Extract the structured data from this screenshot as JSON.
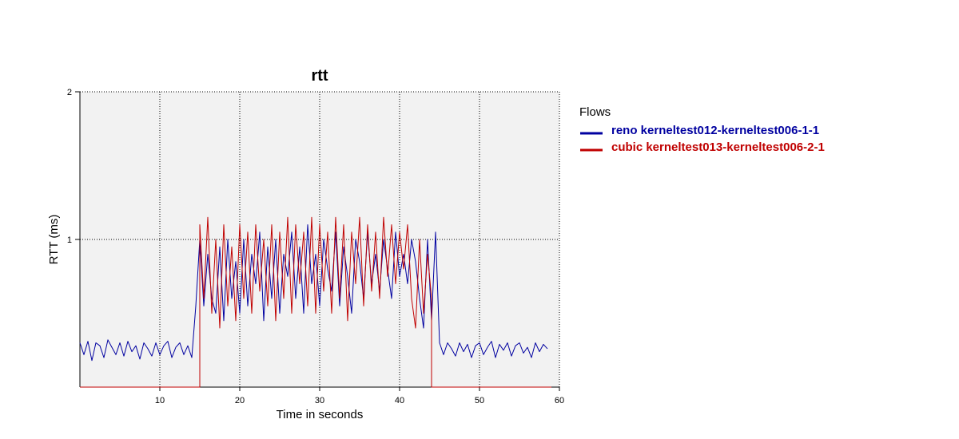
{
  "chart_data": {
    "type": "line",
    "title": "rtt",
    "xlabel": "Time in seconds",
    "ylabel": "RTT (ms)",
    "xlim": [
      0,
      60
    ],
    "ylim": [
      0,
      2
    ],
    "xticks": [
      10,
      20,
      30,
      40,
      50,
      60
    ],
    "yticks": [
      1,
      2
    ],
    "grid": true,
    "legend": {
      "title": "Flows",
      "placement": "right"
    },
    "series": [
      {
        "name": "reno kerneltest012-kerneltest006-1-1",
        "color": "#0000a0",
        "x": [
          0.0,
          0.5,
          1.0,
          1.5,
          2.0,
          2.5,
          3.0,
          3.5,
          4.0,
          4.5,
          5.0,
          5.5,
          6.0,
          6.5,
          7.0,
          7.5,
          8.0,
          8.5,
          9.0,
          9.5,
          10.0,
          10.5,
          11.0,
          11.5,
          12.0,
          12.5,
          13.0,
          13.5,
          14.0,
          14.5,
          15.0,
          15.5,
          16.0,
          16.5,
          17.0,
          17.5,
          18.0,
          18.5,
          19.0,
          19.5,
          20.0,
          20.5,
          21.0,
          21.5,
          22.0,
          22.5,
          23.0,
          23.5,
          24.0,
          24.5,
          25.0,
          25.5,
          26.0,
          26.5,
          27.0,
          27.5,
          28.0,
          28.5,
          29.0,
          29.5,
          30.0,
          30.5,
          31.0,
          31.5,
          32.0,
          32.5,
          33.0,
          33.5,
          34.0,
          34.5,
          35.0,
          35.5,
          36.0,
          36.5,
          37.0,
          37.5,
          38.0,
          38.5,
          39.0,
          39.5,
          40.0,
          40.5,
          41.0,
          41.5,
          42.0,
          42.5,
          43.0,
          43.5,
          44.0,
          44.5,
          45.0,
          45.5,
          46.0,
          46.5,
          47.0,
          47.5,
          48.0,
          48.5,
          49.0,
          49.5,
          50.0,
          50.5,
          51.0,
          51.5,
          52.0,
          52.5,
          53.0,
          53.5,
          54.0,
          54.5,
          55.0,
          55.5,
          56.0,
          56.5,
          57.0,
          57.5,
          58.0,
          58.5
        ],
        "y": [
          0.3,
          0.22,
          0.31,
          0.18,
          0.3,
          0.28,
          0.2,
          0.32,
          0.27,
          0.22,
          0.3,
          0.21,
          0.31,
          0.24,
          0.28,
          0.19,
          0.3,
          0.26,
          0.21,
          0.3,
          0.22,
          0.28,
          0.31,
          0.2,
          0.27,
          0.3,
          0.22,
          0.28,
          0.2,
          0.55,
          1.0,
          0.55,
          0.9,
          0.6,
          0.5,
          0.95,
          0.45,
          1.0,
          0.6,
          0.85,
          0.5,
          1.0,
          0.55,
          0.9,
          0.7,
          1.05,
          0.45,
          0.95,
          0.6,
          1.0,
          0.5,
          0.9,
          0.75,
          1.05,
          0.6,
          0.95,
          0.5,
          1.1,
          0.7,
          0.9,
          0.55,
          1.0,
          0.8,
          0.65,
          1.05,
          0.55,
          0.95,
          0.75,
          0.5,
          1.0,
          0.85,
          0.6,
          1.05,
          0.7,
          0.9,
          0.65,
          1.0,
          0.8,
          0.6,
          1.05,
          0.75,
          0.9,
          0.7,
          1.0,
          0.85,
          0.6,
          0.4,
          1.0,
          0.45,
          1.05,
          0.3,
          0.22,
          0.3,
          0.26,
          0.21,
          0.3,
          0.24,
          0.29,
          0.2,
          0.28,
          0.3,
          0.22,
          0.27,
          0.31,
          0.2,
          0.29,
          0.25,
          0.3,
          0.21,
          0.28,
          0.3,
          0.23,
          0.27,
          0.2,
          0.3,
          0.24,
          0.29,
          0.26
        ],
        "x_dense": true
      },
      {
        "name": "cubic kerneltest013-kerneltest006-2-1",
        "color": "#c00000",
        "x": [
          0.0,
          15.0,
          15.0,
          15.5,
          16.0,
          16.5,
          17.0,
          17.5,
          18.0,
          18.5,
          19.0,
          19.5,
          20.0,
          20.5,
          21.0,
          21.5,
          22.0,
          22.5,
          23.0,
          23.5,
          24.0,
          24.5,
          25.0,
          25.5,
          26.0,
          26.5,
          27.0,
          27.5,
          28.0,
          28.5,
          29.0,
          29.5,
          30.0,
          30.5,
          31.0,
          31.5,
          32.0,
          32.5,
          33.0,
          33.5,
          34.0,
          34.5,
          35.0,
          35.5,
          36.0,
          36.5,
          37.0,
          37.5,
          38.0,
          38.5,
          39.0,
          39.5,
          40.0,
          40.5,
          41.0,
          41.5,
          42.0,
          42.5,
          43.0,
          43.5,
          44.0,
          44.0,
          59.0
        ],
        "y": [
          0.0,
          0.0,
          1.1,
          0.6,
          1.15,
          0.5,
          1.0,
          0.4,
          1.1,
          0.55,
          0.95,
          0.45,
          1.1,
          0.6,
          1.05,
          0.5,
          1.1,
          0.65,
          1.0,
          0.55,
          1.1,
          0.45,
          1.05,
          0.6,
          1.15,
          0.5,
          1.1,
          0.7,
          1.05,
          0.55,
          1.15,
          0.5,
          1.1,
          0.65,
          1.05,
          0.5,
          1.15,
          0.6,
          1.1,
          0.45,
          1.05,
          0.7,
          1.15,
          0.55,
          1.1,
          0.65,
          1.05,
          0.6,
          1.15,
          0.75,
          1.1,
          0.7,
          1.05,
          0.8,
          1.1,
          0.6,
          0.4,
          1.0,
          0.5,
          0.9,
          0.6,
          0.0,
          0.0
        ]
      }
    ]
  }
}
